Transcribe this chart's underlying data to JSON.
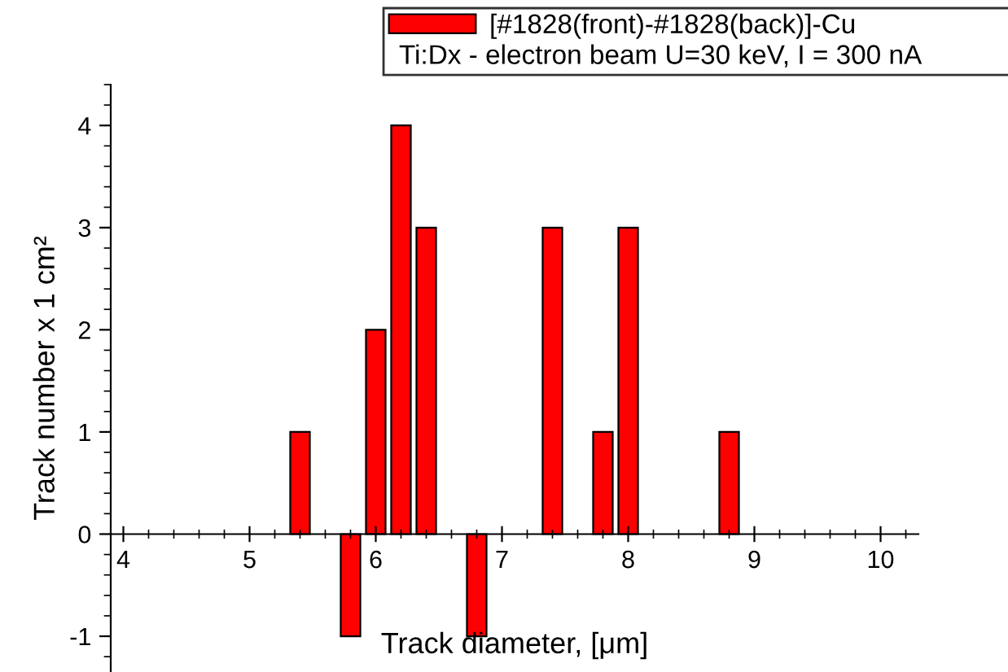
{
  "chart_data": {
    "type": "bar",
    "xlabel": "Track diameter, [μm]",
    "ylabel": "Track number x 1 cm²",
    "x": [
      5.4,
      5.8,
      6.0,
      6.2,
      6.4,
      6.8,
      7.4,
      7.8,
      8.0,
      8.8
    ],
    "series": [
      {
        "name": "[#1828(front)-#1828(back)]-Cu",
        "color": "#ff0000",
        "values": [
          1,
          -1,
          2,
          4,
          3,
          -1,
          3,
          1,
          3,
          1
        ]
      }
    ],
    "annotations": [
      "Ti:Dx - electron beam U=30 keV, I = 300 nA"
    ],
    "xlim": [
      3.9,
      10.3
    ],
    "xticks": [
      4,
      5,
      6,
      7,
      8,
      9,
      10
    ],
    "ylim": [
      -1.35,
      4.4
    ],
    "yticks": [
      -1,
      0,
      1,
      2,
      3,
      4
    ],
    "grid": false,
    "legend": "top right"
  }
}
